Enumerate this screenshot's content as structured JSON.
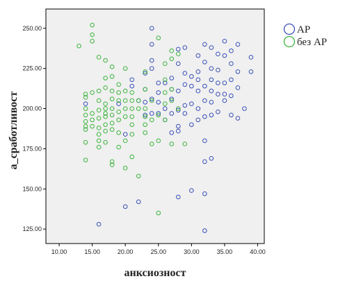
{
  "chart_data": {
    "type": "scatter",
    "xlabel": "анксиозност",
    "ylabel": "а_сработливост",
    "xlim": [
      8,
      41
    ],
    "ylim": [
      116,
      262
    ],
    "x_ticks": [
      10,
      15,
      20,
      25,
      30,
      35,
      40
    ],
    "x_tick_labels": [
      "10.00",
      "15.00",
      "20.00",
      "25.00",
      "30.00",
      "35.00",
      "40.00"
    ],
    "y_ticks": [
      125,
      150,
      175,
      200,
      225,
      250
    ],
    "y_tick_labels": [
      "125.00",
      "150.00",
      "175.00",
      "200.00",
      "225.00",
      "250.00"
    ],
    "grid": false,
    "legend_position": "top-right, outside plot",
    "plot_background": "#f0f0f0",
    "series": [
      {
        "name": "АР",
        "color": "#3a4fb8",
        "marker": "open-circle",
        "points": [
          [
            14,
            203
          ],
          [
            16,
            128
          ],
          [
            19,
            203
          ],
          [
            20,
            184
          ],
          [
            20,
            139
          ],
          [
            21,
            218
          ],
          [
            21,
            214
          ],
          [
            22,
            205
          ],
          [
            22,
            142
          ],
          [
            23,
            222
          ],
          [
            23,
            212
          ],
          [
            23,
            204
          ],
          [
            23,
            196
          ],
          [
            24,
            250
          ],
          [
            24,
            240
          ],
          [
            24,
            230
          ],
          [
            24,
            225
          ],
          [
            24,
            206
          ],
          [
            24,
            197
          ],
          [
            25,
            216
          ],
          [
            25,
            210
          ],
          [
            25,
            204
          ],
          [
            25,
            197
          ],
          [
            26,
            216
          ],
          [
            26,
            200
          ],
          [
            26,
            193
          ],
          [
            27,
            219
          ],
          [
            27,
            212
          ],
          [
            27,
            206
          ],
          [
            27,
            197
          ],
          [
            27,
            185
          ],
          [
            28,
            237
          ],
          [
            28,
            228
          ],
          [
            28,
            211
          ],
          [
            28,
            199
          ],
          [
            28,
            189
          ],
          [
            28,
            186
          ],
          [
            28,
            145
          ],
          [
            29,
            238
          ],
          [
            29,
            222
          ],
          [
            29,
            215
          ],
          [
            29,
            202
          ],
          [
            29,
            197
          ],
          [
            30,
            220
          ],
          [
            30,
            214
          ],
          [
            30,
            203
          ],
          [
            30,
            190
          ],
          [
            30,
            149
          ],
          [
            31,
            233
          ],
          [
            31,
            223
          ],
          [
            31,
            218
          ],
          [
            31,
            211
          ],
          [
            31,
            200
          ],
          [
            31,
            193
          ],
          [
            32,
            240
          ],
          [
            32,
            229
          ],
          [
            32,
            214
          ],
          [
            32,
            205
          ],
          [
            32,
            195
          ],
          [
            32,
            180
          ],
          [
            32,
            167
          ],
          [
            32,
            147
          ],
          [
            32,
            124
          ],
          [
            33,
            238
          ],
          [
            33,
            225
          ],
          [
            33,
            218
          ],
          [
            33,
            211
          ],
          [
            33,
            204
          ],
          [
            33,
            196
          ],
          [
            33,
            169
          ],
          [
            34,
            234
          ],
          [
            34,
            224
          ],
          [
            34,
            216
          ],
          [
            34,
            209
          ],
          [
            34,
            198
          ],
          [
            35,
            242
          ],
          [
            35,
            233
          ],
          [
            35,
            216
          ],
          [
            35,
            209
          ],
          [
            35,
            205
          ],
          [
            36,
            236
          ],
          [
            36,
            228
          ],
          [
            36,
            218
          ],
          [
            36,
            208
          ],
          [
            36,
            196
          ],
          [
            37,
            240
          ],
          [
            37,
            223
          ],
          [
            37,
            213
          ],
          [
            37,
            194
          ],
          [
            38,
            200
          ],
          [
            39,
            232
          ],
          [
            39,
            223
          ]
        ]
      },
      {
        "name": "без АР",
        "color": "#3db43d",
        "marker": "open-circle",
        "points": [
          [
            13,
            239
          ],
          [
            14,
            209
          ],
          [
            14,
            207
          ],
          [
            14,
            200
          ],
          [
            14,
            196
          ],
          [
            14,
            192
          ],
          [
            14,
            189
          ],
          [
            14,
            187
          ],
          [
            14,
            179
          ],
          [
            14,
            168
          ],
          [
            15,
            252
          ],
          [
            15,
            246
          ],
          [
            15,
            242
          ],
          [
            15,
            210
          ],
          [
            15,
            197
          ],
          [
            15,
            193
          ],
          [
            15,
            189
          ],
          [
            16,
            232
          ],
          [
            16,
            211
          ],
          [
            16,
            205
          ],
          [
            16,
            199
          ],
          [
            16,
            194
          ],
          [
            16,
            188
          ],
          [
            16,
            184
          ],
          [
            16,
            180
          ],
          [
            16,
            176
          ],
          [
            17,
            230
          ],
          [
            17,
            219
          ],
          [
            17,
            213
          ],
          [
            17,
            203
          ],
          [
            17,
            200
          ],
          [
            17,
            197
          ],
          [
            17,
            195
          ],
          [
            17,
            190
          ],
          [
            17,
            186
          ],
          [
            17,
            179
          ],
          [
            18,
            226
          ],
          [
            18,
            220
          ],
          [
            18,
            211
          ],
          [
            18,
            206
          ],
          [
            18,
            200
          ],
          [
            18,
            196
          ],
          [
            18,
            191
          ],
          [
            18,
            187
          ],
          [
            18,
            167
          ],
          [
            18,
            165
          ],
          [
            19,
            215
          ],
          [
            19,
            210
          ],
          [
            19,
            205
          ],
          [
            19,
            198
          ],
          [
            19,
            193
          ],
          [
            19,
            185
          ],
          [
            19,
            176
          ],
          [
            20,
            225
          ],
          [
            20,
            211
          ],
          [
            20,
            205
          ],
          [
            20,
            200
          ],
          [
            20,
            195
          ],
          [
            20,
            180
          ],
          [
            20,
            163
          ],
          [
            21,
            210
          ],
          [
            21,
            205
          ],
          [
            21,
            200
          ],
          [
            21,
            195
          ],
          [
            21,
            190
          ],
          [
            21,
            184
          ],
          [
            21,
            170
          ],
          [
            22,
            205
          ],
          [
            22,
            200
          ],
          [
            22,
            158
          ],
          [
            23,
            223
          ],
          [
            23,
            212
          ],
          [
            23,
            200
          ],
          [
            23,
            195
          ],
          [
            23,
            190
          ],
          [
            23,
            185
          ],
          [
            24,
            205
          ],
          [
            24,
            193
          ],
          [
            24,
            178
          ],
          [
            25,
            244
          ],
          [
            25,
            196
          ],
          [
            25,
            180
          ],
          [
            25,
            135
          ],
          [
            26,
            228
          ],
          [
            26,
            218
          ],
          [
            26,
            210
          ],
          [
            26,
            203
          ],
          [
            26,
            193
          ],
          [
            27,
            236
          ],
          [
            27,
            231
          ],
          [
            27,
            212
          ],
          [
            27,
            205
          ],
          [
            27,
            178
          ],
          [
            28,
            234
          ],
          [
            28,
            200
          ],
          [
            29,
            178
          ]
        ]
      }
    ]
  }
}
